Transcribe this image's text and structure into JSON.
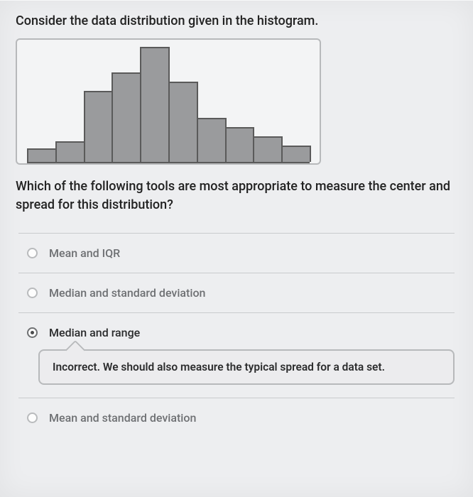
{
  "prompt": "Consider the data distribution given in the histogram.",
  "histogram": {
    "bar_heights_pct": [
      12,
      18,
      62,
      78,
      100,
      70,
      38,
      30,
      22,
      14
    ],
    "bar_fill": "#9a9b9d",
    "bar_border": "#5a5a5a",
    "box_border": "#b7b9bb",
    "box_bg": "#f3f4f5"
  },
  "question": "Which of the following tools are most appropriate to measure the center and spread for this distribution?",
  "options": [
    {
      "label": "Mean and IQR",
      "selected": false
    },
    {
      "label": "Median and standard deviation",
      "selected": false
    },
    {
      "label": "Median and range",
      "selected": true
    },
    {
      "label": "Mean and standard deviation",
      "selected": false
    }
  ],
  "feedback": "Incorrect. We should also measure the typical spread for a data set."
}
